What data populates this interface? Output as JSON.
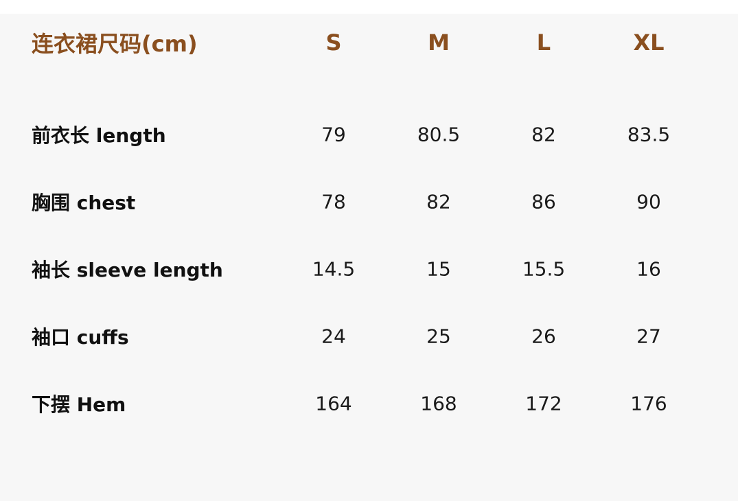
{
  "table": {
    "title": "连衣裙尺码(cm)",
    "sizes": [
      "S",
      "M",
      "L",
      "XL"
    ],
    "header_color": "#8a4f1f",
    "rows": [
      {
        "label": "前衣长 length",
        "values": [
          "79",
          "80.5",
          "82",
          "83.5"
        ]
      },
      {
        "label": "胸围 chest",
        "values": [
          "78",
          "82",
          "86",
          "90"
        ]
      },
      {
        "label": "袖长 sleeve length",
        "values": [
          "14.5",
          "15",
          "15.5",
          "16"
        ]
      },
      {
        "label": "袖口 cuffs",
        "values": [
          "24",
          "25",
          "26",
          "27"
        ]
      },
      {
        "label": "下摆 Hem",
        "values": [
          "164",
          "168",
          "172",
          "176"
        ]
      }
    ]
  }
}
